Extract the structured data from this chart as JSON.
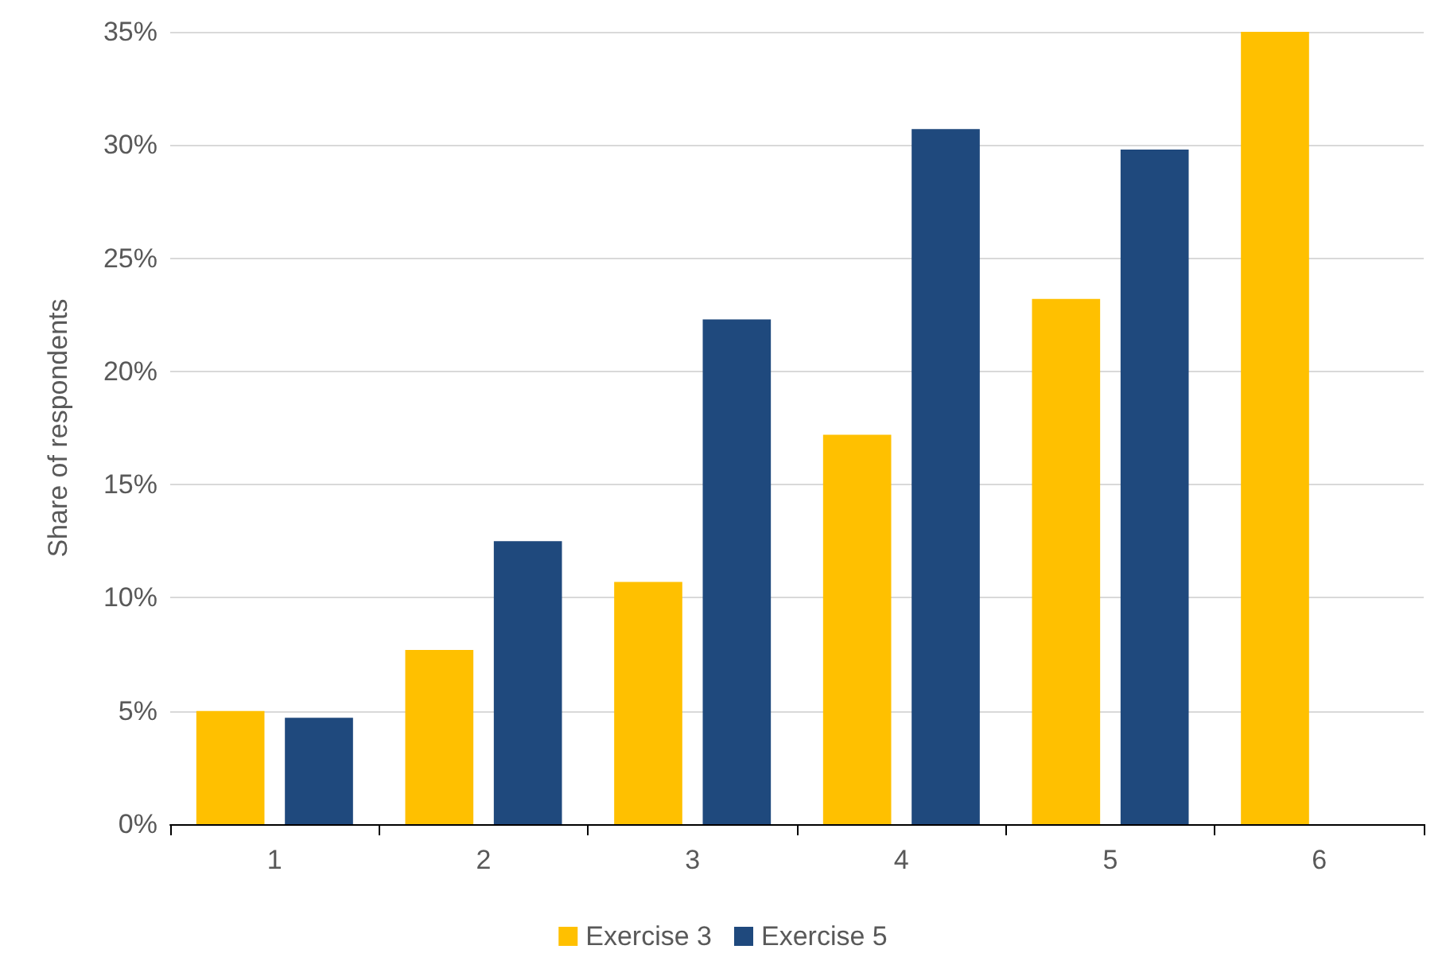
{
  "chart_data": {
    "type": "bar",
    "ylabel": "Share of respondents",
    "categories": [
      "1",
      "2",
      "3",
      "4",
      "5",
      "6"
    ],
    "series": [
      {
        "name": "Exercise 3",
        "color": "#ffc000",
        "values": [
          5.0,
          7.7,
          10.7,
          17.2,
          23.2,
          35.0
        ]
      },
      {
        "name": "Exercise 5",
        "color": "#1f497d",
        "values": [
          4.7,
          12.5,
          22.3,
          30.7,
          29.8,
          null
        ]
      }
    ],
    "ylim": [
      0,
      35
    ],
    "yticks": [
      {
        "value": 0,
        "label": "0%"
      },
      {
        "value": 5,
        "label": "5%"
      },
      {
        "value": 10,
        "label": "10%"
      },
      {
        "value": 15,
        "label": "15%"
      },
      {
        "value": 20,
        "label": "20%"
      },
      {
        "value": 25,
        "label": "25%"
      },
      {
        "value": 30,
        "label": "30%"
      },
      {
        "value": 35,
        "label": "35%"
      }
    ],
    "grid": "y",
    "legend": "bottom"
  }
}
